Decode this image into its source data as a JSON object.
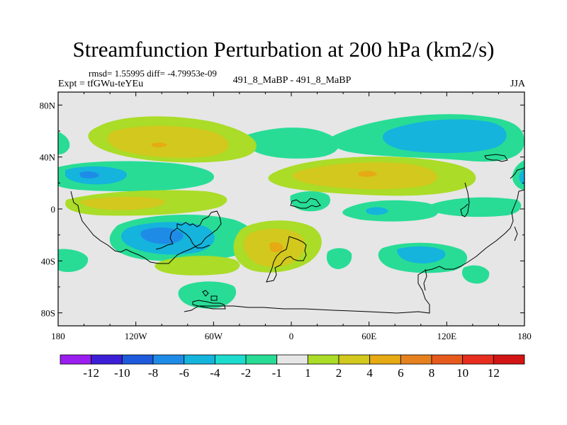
{
  "chart_data": {
    "type": "contour-map",
    "title": "Streamfunction Perturbation at 200 hPa (km2/s)",
    "left_subtitle_stat": "rmsd= 1.55995 diff= -4.79953e-09",
    "left_subtitle": "Expt = tfGWu-teYEu",
    "center_subtitle": "491_8_MaBP - 491_8_MaBP",
    "right_subtitle": "JJA",
    "x_ticks": [
      "180",
      "120W",
      "60W",
      "0",
      "60E",
      "120E",
      "180"
    ],
    "x_values": [
      -180,
      -120,
      -60,
      0,
      60,
      120,
      180
    ],
    "y_ticks": [
      "80N",
      "40N",
      "0",
      "40S",
      "80S"
    ],
    "y_values": [
      80,
      40,
      0,
      -40,
      -80
    ],
    "xlim": [
      -180,
      180
    ],
    "ylim": [
      -90,
      90
    ],
    "colorbar": {
      "labels": [
        "-12",
        "-10",
        "-8",
        "-6",
        "-4",
        "-2",
        "-1",
        "1",
        "2",
        "4",
        "6",
        "8",
        "10",
        "12"
      ],
      "colors": [
        "#9b1ef0",
        "#3c1ed7",
        "#1e5adc",
        "#1e8ce6",
        "#14b4dc",
        "#1edccd",
        "#28dc96",
        "#e6e6e6",
        "#aadc28",
        "#d2c81e",
        "#e6aa14",
        "#e6821e",
        "#e65a1e",
        "#e62d1e",
        "#d21414"
      ]
    },
    "features": [
      {
        "kind": "positive",
        "level": 4,
        "lon": -95,
        "lat": 43,
        "description": "mid-latitude North Pacific/America band"
      },
      {
        "kind": "positive",
        "level": 6,
        "lon": 60,
        "lat": 26,
        "description": "subtropical Asia band"
      },
      {
        "kind": "positive",
        "level": 6,
        "lon": -10,
        "lat": -28,
        "description": "South Atlantic center"
      },
      {
        "kind": "negative",
        "level": -6,
        "lon": 150,
        "lat": 52,
        "description": "North Pacific high-latitude"
      },
      {
        "kind": "negative",
        "level": -6,
        "lon": -160,
        "lat": 24,
        "description": "Central Pacific subtropics"
      },
      {
        "kind": "negative",
        "level": -6,
        "lon": -110,
        "lat": -20,
        "description": "Southeast Pacific"
      },
      {
        "kind": "negative",
        "level": -4,
        "lon": 90,
        "lat": -36,
        "description": "Indian Ocean subtropics"
      }
    ]
  }
}
